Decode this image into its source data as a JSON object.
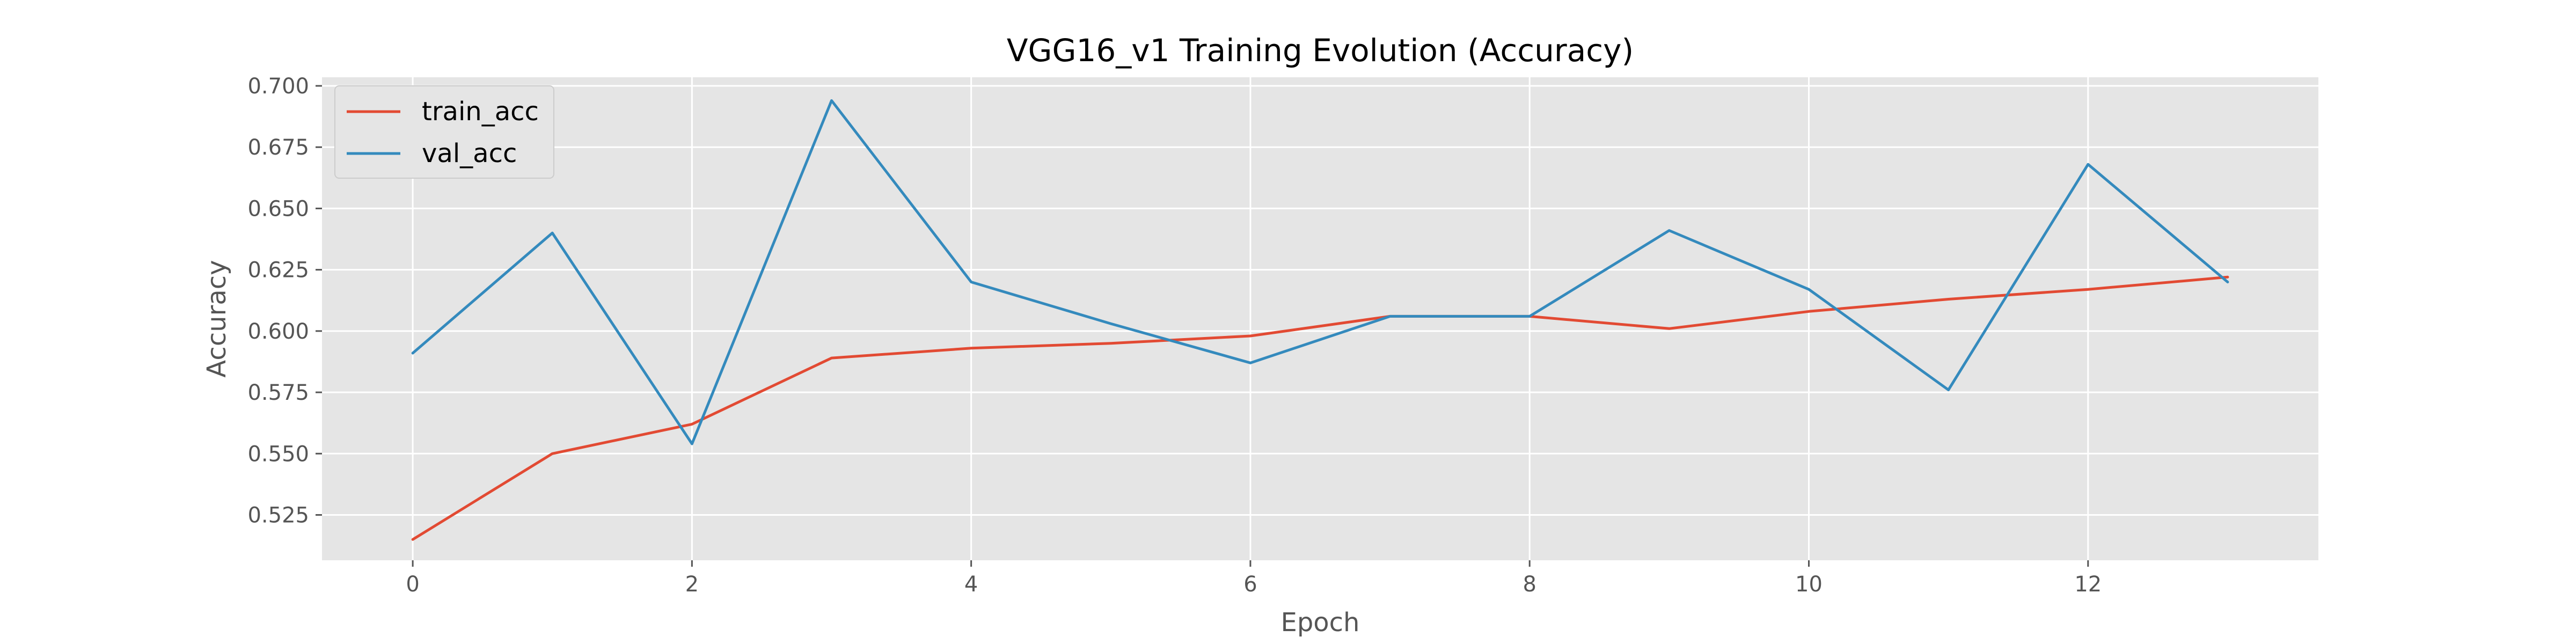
{
  "chart_data": {
    "type": "line",
    "title": "VGG16_v1 Training Evolution (Accuracy)",
    "xlabel": "Epoch",
    "ylabel": "Accuracy",
    "x": [
      0,
      1,
      2,
      3,
      4,
      5,
      6,
      7,
      8,
      9,
      10,
      11,
      12,
      13
    ],
    "xlim": [
      -0.65,
      13.65
    ],
    "ylim": [
      0.5065,
      0.7035
    ],
    "xticks": [
      0,
      2,
      4,
      6,
      8,
      10,
      12
    ],
    "xtick_labels": [
      "0",
      "2",
      "4",
      "6",
      "8",
      "10",
      "12"
    ],
    "yticks": [
      0.525,
      0.55,
      0.575,
      0.6,
      0.625,
      0.65,
      0.675,
      0.7
    ],
    "ytick_labels": [
      "0.525",
      "0.550",
      "0.575",
      "0.600",
      "0.625",
      "0.650",
      "0.675",
      "0.700"
    ],
    "grid": true,
    "legend_position": "upper-left",
    "series": [
      {
        "name": "train_acc",
        "color": "#E24A33",
        "values": [
          0.515,
          0.55,
          0.562,
          0.589,
          0.593,
          0.595,
          0.598,
          0.606,
          0.606,
          0.601,
          0.608,
          0.613,
          0.617,
          0.622
        ]
      },
      {
        "name": "val_acc",
        "color": "#348ABD",
        "values": [
          0.591,
          0.64,
          0.554,
          0.694,
          0.62,
          0.603,
          0.587,
          0.606,
          0.606,
          0.641,
          0.617,
          0.576,
          0.668,
          0.62
        ]
      }
    ],
    "plot_background": "#E5E5E5",
    "grid_color": "#FFFFFF"
  }
}
